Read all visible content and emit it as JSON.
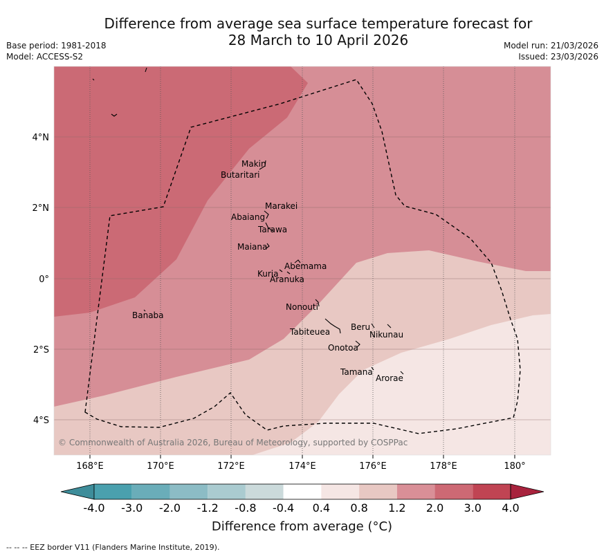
{
  "header": {
    "title_line1": "Difference from average sea surface temperature forecast for",
    "title_line2": "28 March to 10 April 2026",
    "base_period": "Base period: 1981-2018",
    "model": "Model: ACCESS-S2",
    "model_run": "Model run: 21/03/2026",
    "issued": "Issued: 23/03/2026"
  },
  "map": {
    "x_ticks": [
      "168°E",
      "170°E",
      "172°E",
      "174°E",
      "176°E",
      "178°E",
      "180°"
    ],
    "y_ticks": [
      "4°N",
      "2°N",
      "0°",
      "2°S",
      "4°S"
    ],
    "copyright": "© Commonwealth of Australia 2026, Bureau of Meteorology, supported by COSPPac",
    "islands": [
      "Makin",
      "Butaritari",
      "Marakei",
      "Abaiang",
      "Tarawa",
      "Maiana",
      "Abemama",
      "Kuria",
      "Aranuka",
      "Banaba",
      "Nonouti",
      "Tabiteuea",
      "Beru",
      "Nikunau",
      "Onotoa",
      "Tamana",
      "Arorae"
    ]
  },
  "colorbar": {
    "labels": [
      "-4.0",
      "-3.0",
      "-2.0",
      "-1.2",
      "-0.8",
      "-0.4",
      "0.4",
      "0.8",
      "1.2",
      "2.0",
      "3.0",
      "4.0"
    ],
    "colors": [
      "#3e8d9a",
      "#4aa0ae",
      "#6aadb9",
      "#8cbcc5",
      "#aacbd0",
      "#cbdadb",
      "#ffffff",
      "#f5e6e4",
      "#e8c8c3",
      "#d98f97",
      "#cd6974",
      "#c04453",
      "#a8233d"
    ],
    "title": "Difference from average (°C)"
  },
  "legend": {
    "eez": "--  --  -- EEZ border V11 (Flanders Marine Institute, 2019)."
  }
}
